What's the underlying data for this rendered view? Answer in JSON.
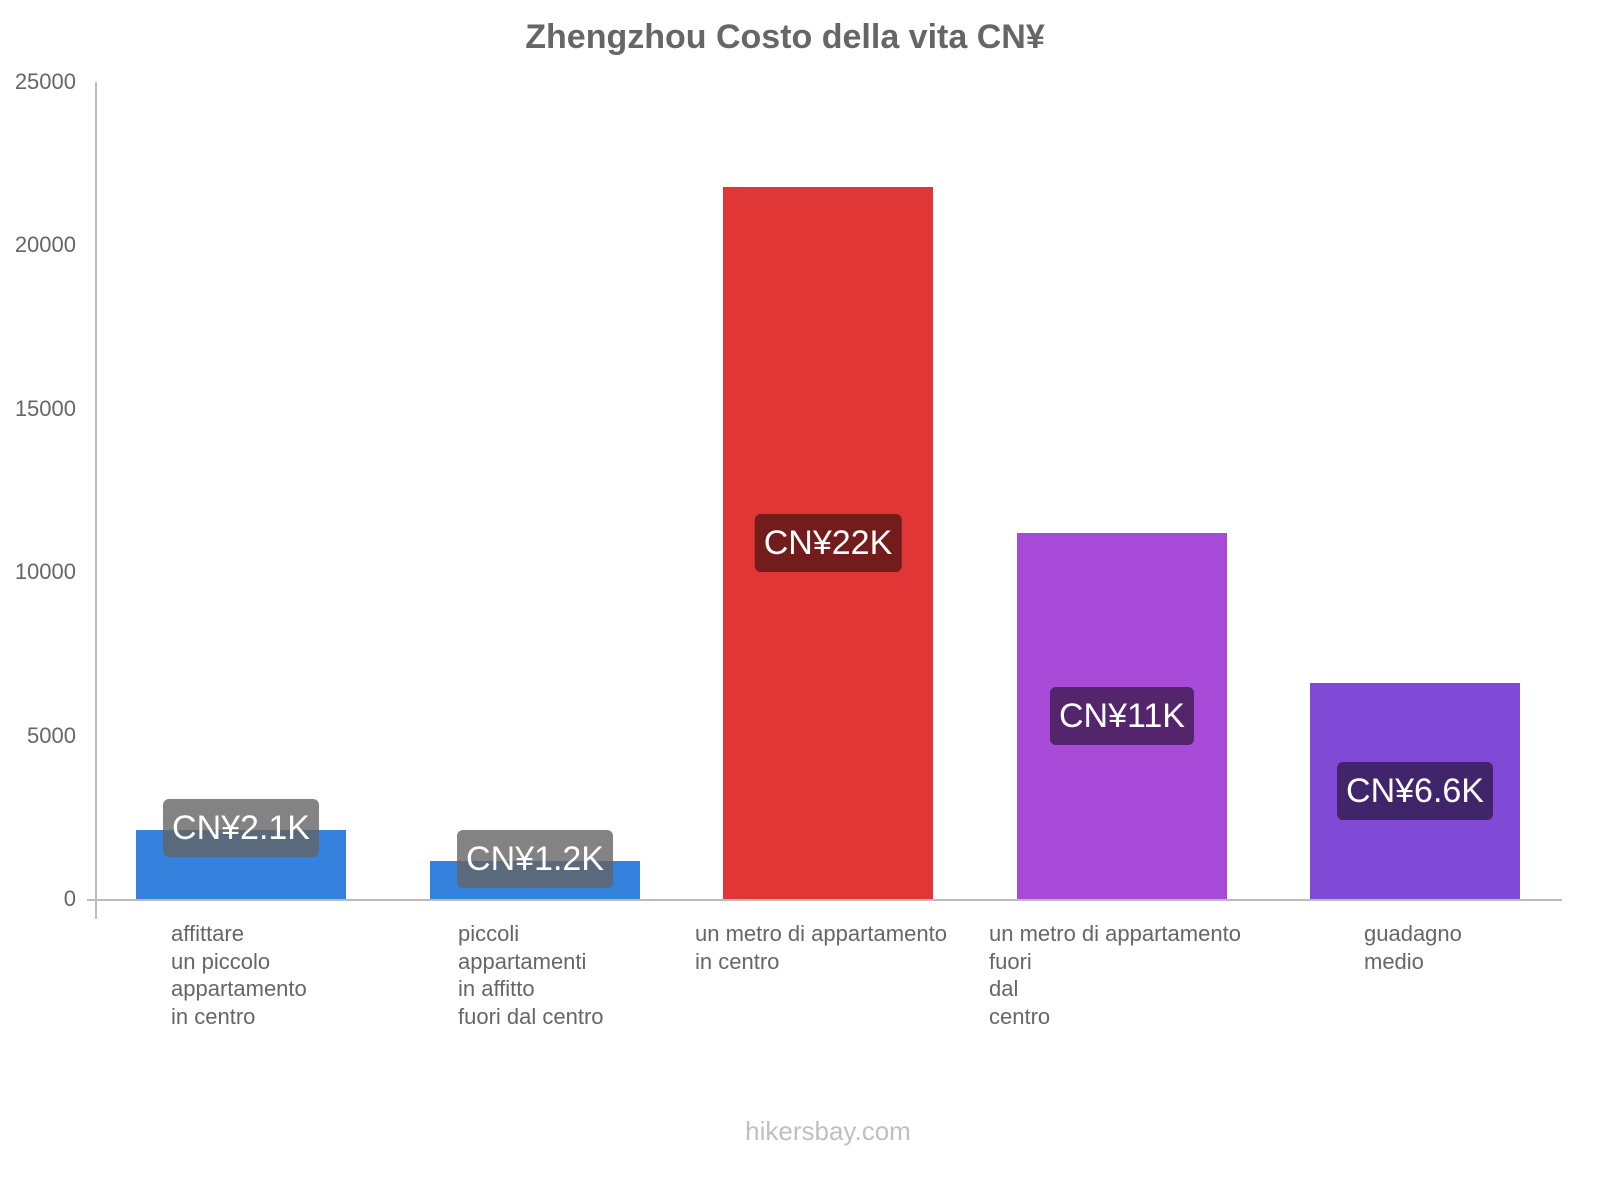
{
  "chart_data": {
    "type": "bar",
    "title": "Zhengzhou Costo della vita CN¥",
    "xlabel": "",
    "ylabel": "",
    "ylim": [
      0,
      25000
    ],
    "yticks": [
      "0",
      "5000",
      "10000",
      "15000",
      "20000",
      "25000"
    ],
    "grid": false,
    "legend": null,
    "categories": [
      "affittare\nun piccolo\nappartamento\nin centro",
      "piccoli\nappartamenti\nin affitto\nfuori dal centro",
      "un metro di appartamento\nin centro",
      "un metro di appartamento\nfuori\ndal\ncentro",
      "guadagno\nmedio"
    ],
    "values": [
      2100,
      1150,
      21800,
      11200,
      6600
    ],
    "data_labels": [
      "CN¥2.1K",
      "CN¥1.2K",
      "CN¥22K",
      "CN¥11K",
      "CN¥6.6K"
    ],
    "colors": [
      "#3582de",
      "#3582de",
      "#e03636",
      "#a84ad8",
      "#8049d6"
    ],
    "label_bg_colors": [
      "rgba(100,100,100,0.8)",
      "rgba(100,100,100,0.8)",
      "#721c1c",
      "#54246c",
      "#40256b"
    ]
  },
  "footer": {
    "watermark": "hikersbay.com"
  }
}
